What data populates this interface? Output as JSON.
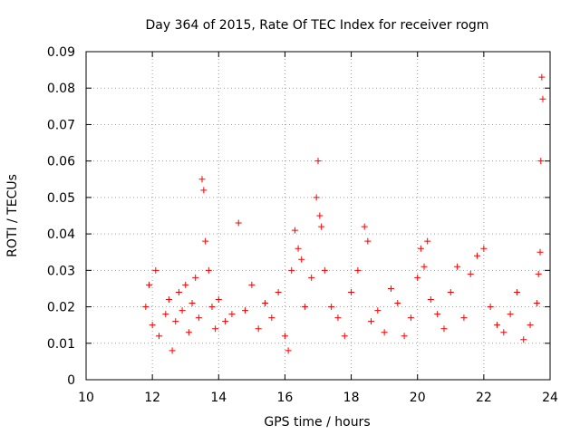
{
  "chart_data": {
    "type": "scatter",
    "title": "Day 364 of 2015, Rate Of TEC Index for receiver rogm",
    "xlabel": "GPS time / hours",
    "ylabel": "ROTI / TECUs",
    "xlim": [
      10,
      24
    ],
    "ylim": [
      0,
      0.09
    ],
    "grid": true,
    "marker": "+",
    "series_color": "#ff0000",
    "x_ticks": [
      "10",
      "12",
      "14",
      "16",
      "18",
      "20",
      "22",
      "24"
    ],
    "y_ticks": [
      "0",
      "0.01",
      "0.02",
      "0.03",
      "0.04",
      "0.05",
      "0.06",
      "0.07",
      "0.08",
      "0.09"
    ],
    "series": [
      {
        "name": "ROTI",
        "x": [
          11.8,
          11.9,
          12.0,
          12.1,
          12.2,
          12.4,
          12.5,
          12.6,
          12.7,
          12.8,
          12.9,
          13.0,
          13.1,
          13.2,
          13.3,
          13.4,
          13.5,
          13.55,
          13.6,
          13.7,
          13.8,
          13.9,
          14.0,
          14.2,
          14.4,
          14.6,
          14.8,
          15.0,
          15.2,
          15.4,
          15.6,
          15.8,
          16.0,
          16.1,
          16.2,
          16.3,
          16.4,
          16.5,
          16.6,
          16.8,
          16.95,
          17.0,
          17.05,
          17.1,
          17.2,
          17.4,
          17.6,
          17.8,
          18.0,
          18.2,
          18.4,
          18.5,
          18.6,
          18.8,
          19.0,
          19.2,
          19.4,
          19.6,
          19.8,
          20.0,
          20.1,
          20.2,
          20.3,
          20.4,
          20.6,
          20.8,
          21.0,
          21.2,
          21.4,
          21.6,
          21.8,
          22.0,
          22.2,
          22.4,
          22.6,
          22.8,
          23.0,
          23.2,
          23.4,
          23.6,
          23.65,
          23.7,
          23.72,
          23.75,
          23.78
        ],
        "y": [
          0.02,
          0.026,
          0.015,
          0.03,
          0.012,
          0.018,
          0.022,
          0.008,
          0.016,
          0.024,
          0.019,
          0.026,
          0.013,
          0.021,
          0.028,
          0.017,
          0.055,
          0.052,
          0.038,
          0.03,
          0.02,
          0.014,
          0.022,
          0.016,
          0.018,
          0.043,
          0.019,
          0.026,
          0.014,
          0.021,
          0.017,
          0.024,
          0.012,
          0.008,
          0.03,
          0.041,
          0.036,
          0.033,
          0.02,
          0.028,
          0.05,
          0.06,
          0.045,
          0.042,
          0.03,
          0.02,
          0.017,
          0.012,
          0.024,
          0.03,
          0.042,
          0.038,
          0.016,
          0.019,
          0.013,
          0.025,
          0.021,
          0.012,
          0.017,
          0.028,
          0.036,
          0.031,
          0.038,
          0.022,
          0.018,
          0.014,
          0.024,
          0.031,
          0.017,
          0.029,
          0.034,
          0.036,
          0.02,
          0.015,
          0.013,
          0.018,
          0.024,
          0.011,
          0.015,
          0.021,
          0.029,
          0.035,
          0.06,
          0.083,
          0.077
        ]
      }
    ]
  }
}
